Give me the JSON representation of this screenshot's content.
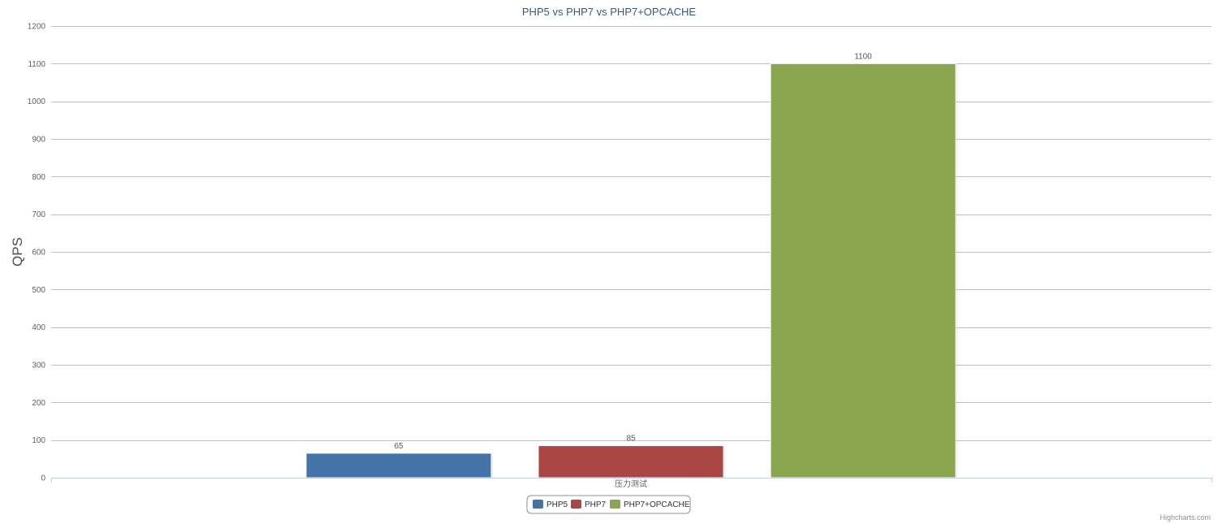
{
  "chart_data": {
    "type": "bar",
    "title": "PHP5 vs PHP7 vs PHP7+OPCACHE",
    "ylabel": "QPS",
    "xlabel": "",
    "categories": [
      "压力测试"
    ],
    "ylim": [
      0,
      1200
    ],
    "y_ticks": [
      0,
      100,
      200,
      300,
      400,
      500,
      600,
      700,
      800,
      900,
      1000,
      1100,
      1200
    ],
    "grid": true,
    "legend_position": "bottom-center",
    "series": [
      {
        "name": "PHP5",
        "values": [
          65
        ],
        "color": "#4572a7"
      },
      {
        "name": "PHP7",
        "values": [
          85
        ],
        "color": "#aa4643"
      },
      {
        "name": "PHP7+OPCACHE",
        "values": [
          1100
        ],
        "color": "#89a54e"
      }
    ]
  },
  "credits": "Highcharts.com"
}
